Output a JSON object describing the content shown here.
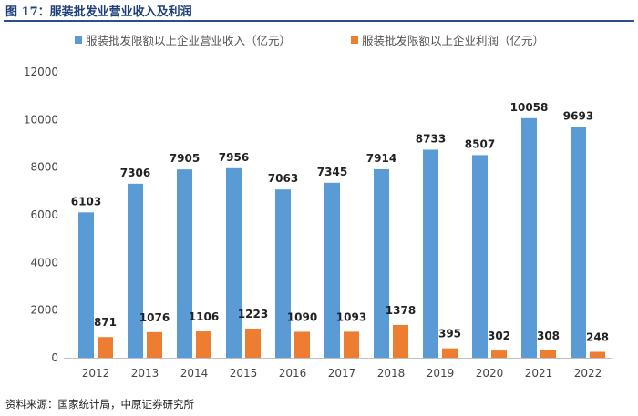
{
  "figure": {
    "title": "图 17：服装批发业营业收入及利润",
    "source": "资料来源：国家统计局，中原证券研究所"
  },
  "colors": {
    "revenue": "#5b9bd5",
    "profit": "#ed7d31",
    "axis": "#bfbfbf"
  },
  "chart_data": {
    "type": "bar",
    "title": "服装批发业营业收入及利润",
    "xlabel": "",
    "ylabel": "",
    "ylim": [
      0,
      12000
    ],
    "yticks": [
      0,
      2000,
      4000,
      6000,
      8000,
      10000,
      12000
    ],
    "grid": false,
    "legend_position": "top",
    "categories": [
      "2012",
      "2013",
      "2014",
      "2015",
      "2016",
      "2017",
      "2018",
      "2019",
      "2020",
      "2021",
      "2022"
    ],
    "series": [
      {
        "name": "服装批发限额以上企业营业收入（亿元）",
        "values": [
          6103,
          7306,
          7905,
          7956,
          7063,
          7345,
          7914,
          8733,
          8507,
          10058,
          9693
        ]
      },
      {
        "name": "服装批发限额以上企业利润（亿元）",
        "values": [
          871,
          1076,
          1106,
          1223,
          1090,
          1093,
          1378,
          395,
          302,
          308,
          248
        ]
      }
    ]
  }
}
